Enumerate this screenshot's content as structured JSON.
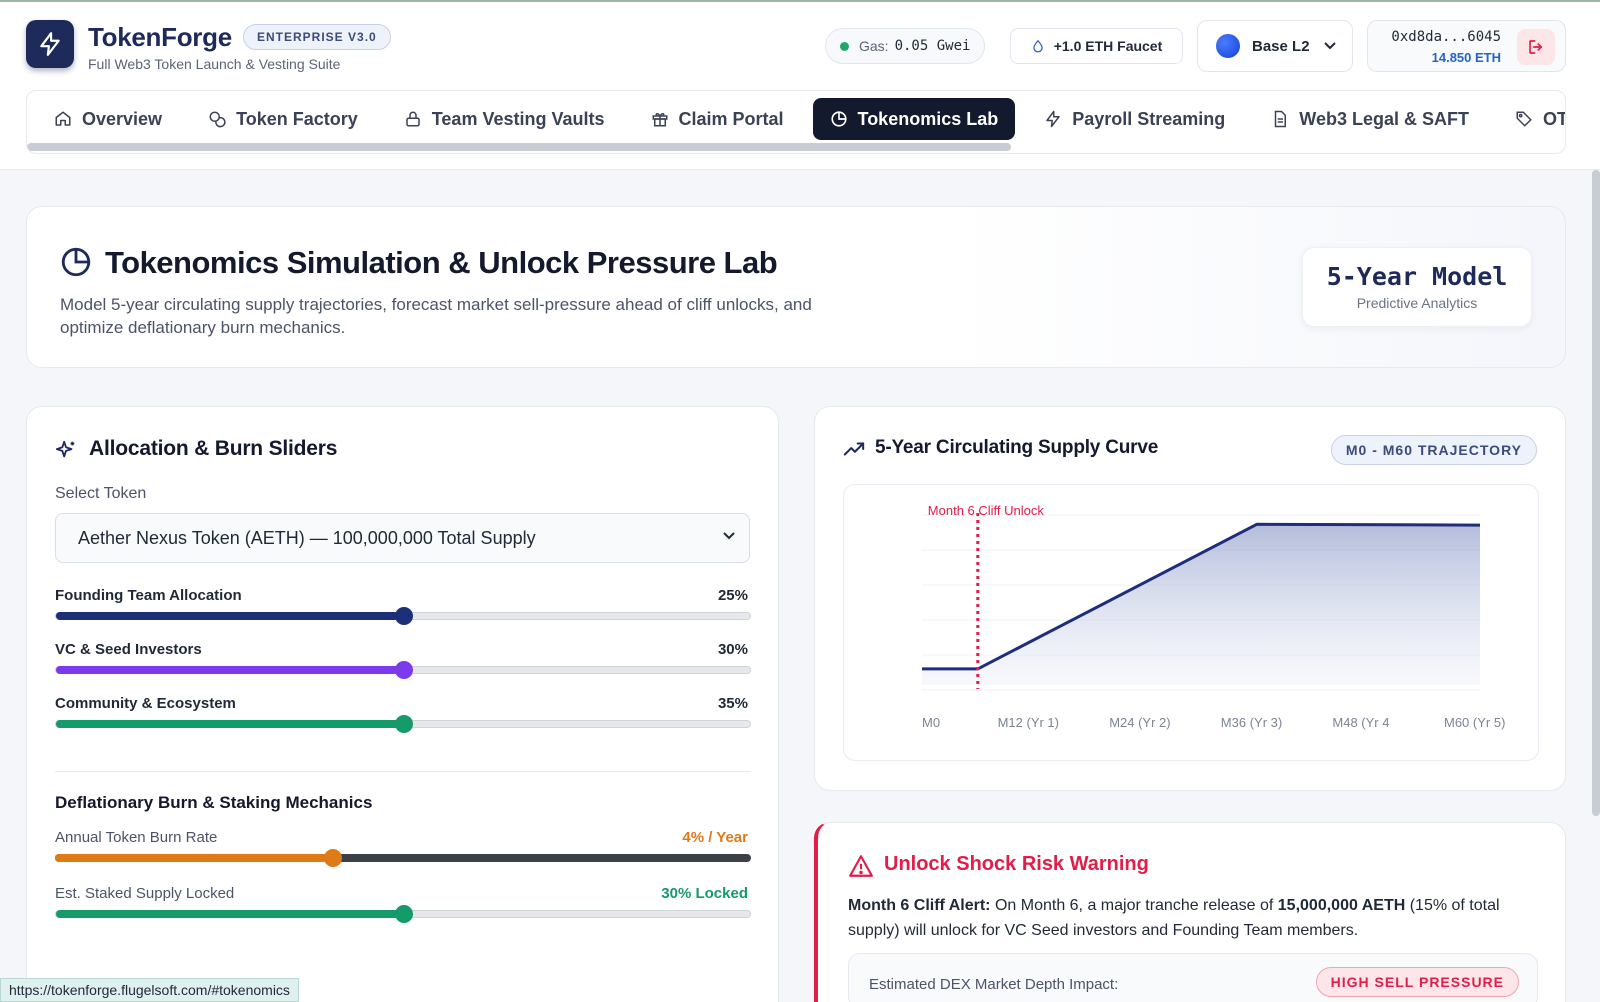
{
  "app": {
    "brand_token": "Token",
    "brand_forge": "Forge",
    "edition_badge": "ENTERPRISE V3.0",
    "subtitle": "Full Web3 Token Launch & Vesting Suite"
  },
  "header": {
    "gas_label": "Gas:",
    "gas_value": "0.05 Gwei",
    "faucet_label": "+1.0 ETH Faucet",
    "network": "Base L2",
    "wallet_address": "0xd8da...6045",
    "wallet_balance": "14.850 ETH"
  },
  "nav": {
    "tabs": [
      {
        "label": "Overview",
        "icon": "home-icon"
      },
      {
        "label": "Token Factory",
        "icon": "coins-icon"
      },
      {
        "label": "Team Vesting Vaults",
        "icon": "lock-icon"
      },
      {
        "label": "Claim Portal",
        "icon": "gift-icon"
      },
      {
        "label": "Tokenomics Lab",
        "icon": "pie-chart-icon",
        "active": true
      },
      {
        "label": "Payroll Streaming",
        "icon": "bolt-icon"
      },
      {
        "label": "Web3 Legal & SAFT",
        "icon": "document-icon"
      },
      {
        "label": "OTC",
        "icon": "tag-icon"
      }
    ]
  },
  "hero": {
    "title": "Tokenomics Simulation & Unlock Pressure Lab",
    "description": "Model 5-year circulating supply trajectories, forecast market sell-pressure ahead of cliff unlocks, and optimize deflationary burn mechanics.",
    "model_title": "5-Year Model",
    "model_subtitle": "Predictive Analytics"
  },
  "allocation": {
    "title": "Allocation & Burn Sliders",
    "select_label": "Select Token",
    "selected_token": "Aether Nexus Token (AETH) — 100,000,000 Total Supply",
    "sliders": [
      {
        "label": "Founding Team Allocation",
        "value_text": "25%",
        "fraction": 0.5,
        "color": "#1e2f7a"
      },
      {
        "label": "VC & Seed Investors",
        "value_text": "30%",
        "fraction": 0.5,
        "color": "#7c3aed"
      },
      {
        "label": "Community & Ecosystem",
        "value_text": "35%",
        "fraction": 0.5,
        "color": "#159a6a"
      }
    ],
    "burn_title": "Deflationary Burn & Staking Mechanics",
    "burn_rate_label": "Annual Token Burn Rate",
    "burn_rate_value": "4% / Year",
    "burn_rate_fraction": 0.4,
    "burn_color": "#e07a16",
    "staked_label": "Est. Staked Supply Locked",
    "staked_value": "30% Locked",
    "staked_fraction": 0.5,
    "staked_color": "#159a6a"
  },
  "chart_card": {
    "title": "5-Year Circulating Supply Curve",
    "badge": "M0 - M60 TRAJECTORY"
  },
  "chart_data": {
    "type": "area",
    "title": "5-Year Circulating Supply Curve",
    "x": [
      0,
      6,
      36,
      60
    ],
    "y": [
      10,
      10,
      100,
      99.5
    ],
    "x_tick_labels": [
      "M0",
      "M12 (Yr 1)",
      "M24 (Yr 2)",
      "M36 (Yr 3)",
      "M48 (Yr 4",
      "M60 (Yr 5)"
    ],
    "x_tick_values": [
      0,
      12,
      24,
      36,
      48,
      60
    ],
    "xlim": [
      0,
      60
    ],
    "ylim": [
      0,
      112
    ],
    "annotation": {
      "x": 6,
      "label": "Month 6 Cliff Unlock",
      "color": "#e11d48"
    },
    "line_color": "#1e2f7a",
    "grid": true
  },
  "warning": {
    "title": "Unlock Shock Risk Warning",
    "alert_bold": "Month 6 Cliff Alert:",
    "text_part1": "On Month 6, a major tranche release of",
    "amount_bold": "15,000,000 AETH",
    "text_part2": "(15% of total supply) will unlock for VC Seed investors and Founding Team members.",
    "impact_label": "Estimated DEX Market Depth Impact:",
    "impact_badge": "HIGH SELL PRESSURE"
  },
  "statusbar": {
    "url": "https://tokenforge.flugelsoft.com/#tokenomics"
  }
}
